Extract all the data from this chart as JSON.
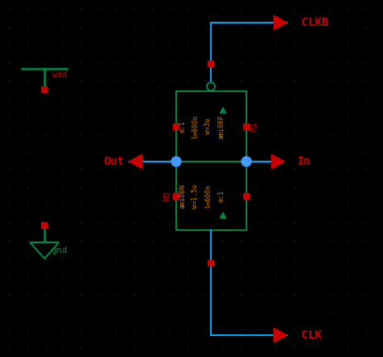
{
  "bg_color": "#000000",
  "wire_blue": "#00aaff",
  "wire_green": "#008844",
  "red": "#cc0000",
  "orange": "#cc7700",
  "node_blue": "#4499ff",
  "figsize": [
    4.74,
    4.42
  ],
  "dpi": 100,
  "labels": {
    "CLKB": "CLKB",
    "CLK": "CLK",
    "Out": "Out",
    "In": "In",
    "vdd": "vdd",
    "gnd": "gnd",
    "M0": "M0",
    "M1": "M1",
    "ami06N": "ami06N",
    "ami06P": "ami06P",
    "m1_top": "m:1",
    "l600n_top": "l=600n",
    "w3u": "w=3u",
    "m1_bot": "m:1",
    "l600n_bot": "l=600n",
    "w15u": "w=1.5u"
  }
}
